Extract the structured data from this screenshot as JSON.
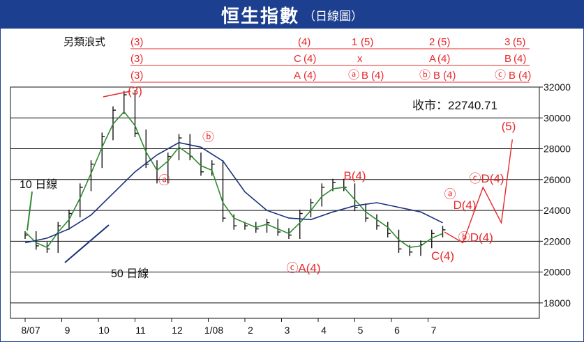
{
  "header": {
    "title": "恒生指數",
    "subtitle": "（日線圖）"
  },
  "wave_labels": {
    "row_title": "另類浪式",
    "row1": [
      "(3)",
      "(4)",
      "1",
      "(5)",
      "2",
      "(5)",
      "3",
      "(5)"
    ],
    "row2": [
      "(3)",
      "C",
      "(4)",
      "x",
      "A",
      "(4)",
      "B",
      "(4)"
    ],
    "row3": [
      "(3)",
      "A",
      "(4)",
      "ⓐ",
      "B",
      "(4)",
      "ⓑ",
      "B",
      "(4)",
      "ⓒ",
      "B",
      "(4)"
    ]
  },
  "colors": {
    "banner": "#1d3f8f",
    "wave_text": "#e8282b",
    "price_bars": "#111111",
    "ma10": "#2f8a2f",
    "ma50": "#1a2f7a",
    "annotation_blue": "#1a2f7a",
    "grid": "#111111"
  },
  "chart_data": {
    "type": "line",
    "title": "恒生指數",
    "close_label": "收市：22740.71",
    "ylim": [
      17000,
      32000
    ],
    "y_ticks": [
      18000,
      20000,
      22000,
      24000,
      26000,
      28000,
      30000,
      32000
    ],
    "x_ticks": [
      "8/07",
      "9",
      "10",
      "11",
      "12",
      "1/08",
      "2",
      "3",
      "4",
      "5",
      "6",
      "7"
    ],
    "series": [
      {
        "name": "收市",
        "style": "ohlc-bars",
        "x": [
          0,
          0.3,
          0.6,
          0.9,
          1.2,
          1.5,
          1.8,
          2.1,
          2.4,
          2.7,
          3.0,
          3.3,
          3.6,
          3.9,
          4.2,
          4.5,
          4.8,
          5.1,
          5.4,
          5.7,
          6.0,
          6.3,
          6.6,
          6.9,
          7.2,
          7.5,
          7.8,
          8.1,
          8.4,
          8.7,
          9.0,
          9.3,
          9.6,
          9.9,
          10.2,
          10.5,
          10.8,
          11.1,
          11.4
        ],
        "values": [
          22400,
          21700,
          21500,
          23000,
          23800,
          25500,
          27000,
          28800,
          30500,
          31500,
          29000,
          27000,
          26000,
          27500,
          28700,
          27500,
          26500,
          27000,
          23500,
          23000,
          23000,
          22800,
          23200,
          22600,
          22400,
          23800,
          24500,
          25500,
          25800,
          25500,
          24200,
          23500,
          23000,
          22500,
          21500,
          21300,
          21800,
          22500,
          22740
        ]
      },
      {
        "name": "10 日線",
        "style": "line",
        "x": [
          0,
          0.3,
          0.6,
          0.9,
          1.2,
          1.5,
          1.8,
          2.1,
          2.4,
          2.7,
          3.0,
          3.3,
          3.6,
          3.9,
          4.2,
          4.5,
          4.8,
          5.1,
          5.4,
          5.7,
          6.0,
          6.3,
          6.6,
          6.9,
          7.2,
          7.5,
          7.8,
          8.1,
          8.4,
          8.7,
          9.0,
          9.3,
          9.6,
          9.9,
          10.2,
          10.5,
          10.8,
          11.1,
          11.4
        ],
        "values": [
          22600,
          21900,
          21600,
          22600,
          23400,
          24800,
          26400,
          28100,
          29600,
          30400,
          29500,
          27800,
          26600,
          27200,
          28100,
          27600,
          26900,
          26600,
          24500,
          23500,
          23200,
          22900,
          23100,
          22800,
          22500,
          23200,
          24000,
          24900,
          25400,
          25500,
          24700,
          23900,
          23400,
          22900,
          22100,
          21600,
          21700,
          22200,
          22500
        ]
      },
      {
        "name": "50 日線",
        "style": "line",
        "x": [
          0,
          0.6,
          1.2,
          1.8,
          2.4,
          3.0,
          3.6,
          4.2,
          4.8,
          5.4,
          6.0,
          6.6,
          7.2,
          7.8,
          8.4,
          9.0,
          9.6,
          10.2,
          10.8,
          11.4
        ],
        "values": [
          21900,
          22200,
          22800,
          23700,
          25100,
          26500,
          27600,
          28400,
          28100,
          27200,
          25200,
          24000,
          23500,
          23400,
          23900,
          24300,
          24500,
          24200,
          23900,
          23200
        ]
      }
    ],
    "annotations": [
      {
        "label": "(3)",
        "x": 3.0,
        "y": 31500
      },
      {
        "label": "ⓐ",
        "x": 3.8,
        "y": 25700
      },
      {
        "label": "ⓑ",
        "x": 5.0,
        "y": 28500
      },
      {
        "label": "ⓒA(4)",
        "x": 7.6,
        "y": 20000
      },
      {
        "label": "B(4)",
        "x": 9.0,
        "y": 26000
      },
      {
        "label": "C(4)",
        "x": 11.4,
        "y": 20800
      },
      {
        "label": "ⓐ",
        "x": 11.6,
        "y": 24800
      },
      {
        "label": "D(4)",
        "x": 12.0,
        "y": 24100
      },
      {
        "label": "ⓑD(4)",
        "x": 12.3,
        "y": 22000
      },
      {
        "label": "ⓒD(4)",
        "x": 12.6,
        "y": 25800
      },
      {
        "label": "(5)",
        "x": 13.2,
        "y": 29200
      }
    ],
    "legend": {
      "ma10": "10 日線",
      "ma50": "50 日線"
    }
  }
}
